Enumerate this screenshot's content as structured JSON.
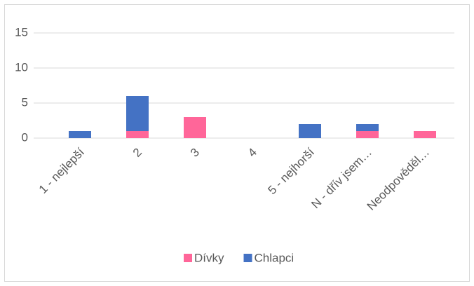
{
  "chart_data": {
    "type": "stacked_bar",
    "categories": [
      "1 - nejlepší",
      "2",
      "3",
      "4",
      "5 - nejhorší",
      "N - dřív jsem…",
      "Neodpověděl…"
    ],
    "series": [
      {
        "name": "Dívky",
        "color": "#ff6699",
        "values": [
          0,
          1,
          3,
          0,
          0,
          1,
          1
        ]
      },
      {
        "name": "Chlapci",
        "color": "#4472c4",
        "values": [
          1,
          5,
          0,
          0,
          2,
          1,
          0
        ]
      }
    ],
    "ylim": [
      0,
      15
    ],
    "yticks": [
      0,
      5,
      10,
      15
    ],
    "grid": true,
    "legend": "bottom"
  }
}
